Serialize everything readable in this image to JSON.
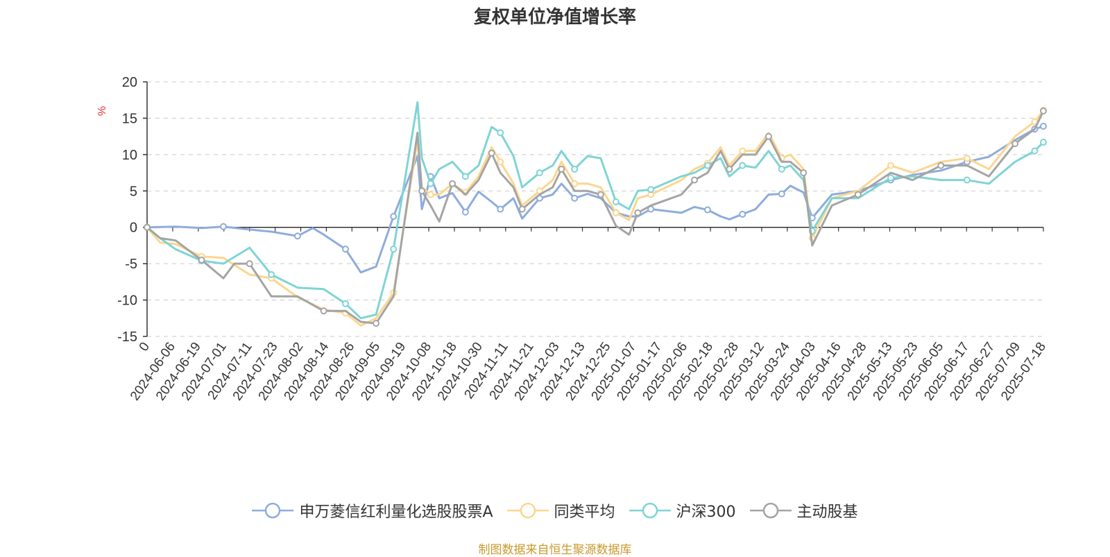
{
  "chart_data": {
    "type": "line",
    "title": "复权单位净值增长率",
    "ylabel": "%",
    "ylim": [
      -15,
      20
    ],
    "yticks": [
      20,
      15,
      10,
      5,
      0,
      -5,
      -10,
      -15
    ],
    "y_grid": true,
    "x_start": "2024-06-06",
    "x_end": "2025-07-22",
    "x_tick_labels": [
      "0",
      "2024-06-06",
      "2024-06-19",
      "2024-07-01",
      "2024-07-11",
      "2024-07-23",
      "2024-08-02",
      "2024-08-14",
      "2024-08-26",
      "2024-09-05",
      "2024-09-19",
      "2024-10-08",
      "2024-10-18",
      "2024-10-30",
      "2024-11-11",
      "2024-11-21",
      "2024-12-03",
      "2024-12-13",
      "2024-12-25",
      "2025-01-07",
      "2025-01-17",
      "2025-02-06",
      "2025-02-18",
      "2025-02-28",
      "2025-03-12",
      "2025-03-24",
      "2025-04-03",
      "2025-04-16",
      "2025-04-28",
      "2025-05-13",
      "2025-05-23",
      "2025-06-05",
      "2025-06-17",
      "2025-06-27",
      "2025-07-09",
      "2025-07-18"
    ],
    "legend_position": "bottom",
    "series": [
      {
        "name": "申万菱信红利量化选股股票A",
        "color": "#8eacdc",
        "points": [
          [
            "2024-06-06",
            0
          ],
          [
            "2024-06-19",
            0.1
          ],
          [
            "2024-07-01",
            -0.1
          ],
          [
            "2024-07-11",
            0.1
          ],
          [
            "2024-07-23",
            -0.3
          ],
          [
            "2024-08-02",
            -0.6
          ],
          [
            "2024-08-14",
            -1.2
          ],
          [
            "2024-08-21",
            -0.1
          ],
          [
            "2024-08-26",
            -1.0
          ],
          [
            "2024-09-05",
            -3.0
          ],
          [
            "2024-09-12",
            -6.2
          ],
          [
            "2024-09-19",
            -5.4
          ],
          [
            "2024-09-27",
            1.5
          ],
          [
            "2024-10-08",
            9.8
          ],
          [
            "2024-10-10",
            2.5
          ],
          [
            "2024-10-14",
            7.0
          ],
          [
            "2024-10-18",
            4.0
          ],
          [
            "2024-10-24",
            4.7
          ],
          [
            "2024-10-30",
            2.1
          ],
          [
            "2024-11-05",
            4.9
          ],
          [
            "2024-11-11",
            3.5
          ],
          [
            "2024-11-15",
            2.5
          ],
          [
            "2024-11-21",
            4.0
          ],
          [
            "2024-11-25",
            1.2
          ],
          [
            "2024-12-03",
            4.0
          ],
          [
            "2024-12-09",
            4.5
          ],
          [
            "2024-12-13",
            6.0
          ],
          [
            "2024-12-19",
            4.0
          ],
          [
            "2024-12-25",
            4.6
          ],
          [
            "2024-12-31",
            4.0
          ],
          [
            "2025-01-07",
            2.0
          ],
          [
            "2025-01-13",
            1.5
          ],
          [
            "2025-01-17",
            1.5
          ],
          [
            "2025-01-23",
            2.5
          ],
          [
            "2025-02-06",
            2.0
          ],
          [
            "2025-02-12",
            2.8
          ],
          [
            "2025-02-18",
            2.4
          ],
          [
            "2025-02-24",
            1.5
          ],
          [
            "2025-02-28",
            1.1
          ],
          [
            "2025-03-06",
            1.8
          ],
          [
            "2025-03-12",
            2.5
          ],
          [
            "2025-03-18",
            4.5
          ],
          [
            "2025-03-24",
            4.6
          ],
          [
            "2025-03-28",
            5.7
          ],
          [
            "2025-04-03",
            4.8
          ],
          [
            "2025-04-07",
            1.3
          ],
          [
            "2025-04-16",
            4.5
          ],
          [
            "2025-04-28",
            5.0
          ],
          [
            "2025-05-13",
            6.5
          ],
          [
            "2025-05-23",
            7.2
          ],
          [
            "2025-06-05",
            7.8
          ],
          [
            "2025-06-17",
            9.0
          ],
          [
            "2025-06-27",
            9.7
          ],
          [
            "2025-07-09",
            12.0
          ],
          [
            "2025-07-18",
            13.5
          ],
          [
            "2025-07-22",
            13.9
          ]
        ]
      },
      {
        "name": "同类平均",
        "color": "#fcd68e",
        "points": [
          [
            "2024-06-06",
            0
          ],
          [
            "2024-06-12",
            -2.1
          ],
          [
            "2024-06-19",
            -2.3
          ],
          [
            "2024-07-01",
            -4.0
          ],
          [
            "2024-07-11",
            -4.2
          ],
          [
            "2024-07-23",
            -6.5
          ],
          [
            "2024-08-02",
            -7.0
          ],
          [
            "2024-08-14",
            -9.6
          ],
          [
            "2024-08-26",
            -11.3
          ],
          [
            "2024-09-05",
            -11.8
          ],
          [
            "2024-09-12",
            -13.5
          ],
          [
            "2024-09-19",
            -12.5
          ],
          [
            "2024-09-27",
            -9.0
          ],
          [
            "2024-10-08",
            12.0
          ],
          [
            "2024-10-10",
            5.5
          ],
          [
            "2024-10-14",
            4.5
          ],
          [
            "2024-10-18",
            4.5
          ],
          [
            "2024-10-24",
            6.0
          ],
          [
            "2024-10-30",
            4.8
          ],
          [
            "2024-11-05",
            7.0
          ],
          [
            "2024-11-11",
            11.0
          ],
          [
            "2024-11-15",
            9.0
          ],
          [
            "2024-11-21",
            6.0
          ],
          [
            "2024-11-25",
            3.0
          ],
          [
            "2024-12-03",
            5.0
          ],
          [
            "2024-12-09",
            6.5
          ],
          [
            "2024-12-13",
            9.0
          ],
          [
            "2024-12-19",
            6.0
          ],
          [
            "2024-12-25",
            6.0
          ],
          [
            "2024-12-31",
            5.5
          ],
          [
            "2025-01-07",
            2.0
          ],
          [
            "2025-01-13",
            1.0
          ],
          [
            "2025-01-17",
            4.0
          ],
          [
            "2025-01-23",
            4.5
          ],
          [
            "2025-02-06",
            6.5
          ],
          [
            "2025-02-12",
            8.0
          ],
          [
            "2025-02-18",
            8.8
          ],
          [
            "2025-02-24",
            11.0
          ],
          [
            "2025-02-28",
            8.5
          ],
          [
            "2025-03-06",
            10.5
          ],
          [
            "2025-03-12",
            10.5
          ],
          [
            "2025-03-18",
            13.0
          ],
          [
            "2025-03-24",
            9.5
          ],
          [
            "2025-03-28",
            10.0
          ],
          [
            "2025-04-03",
            8.0
          ],
          [
            "2025-04-07",
            -1.5
          ],
          [
            "2025-04-16",
            4.0
          ],
          [
            "2025-04-28",
            5.0
          ],
          [
            "2025-05-13",
            8.5
          ],
          [
            "2025-05-23",
            7.5
          ],
          [
            "2025-06-05",
            9.0
          ],
          [
            "2025-06-17",
            9.5
          ],
          [
            "2025-06-27",
            8.0
          ],
          [
            "2025-07-09",
            12.5
          ],
          [
            "2025-07-18",
            14.5
          ],
          [
            "2025-07-22",
            16.1
          ]
        ]
      },
      {
        "name": "沪深300",
        "color": "#7fd4d4",
        "points": [
          [
            "2024-06-06",
            0
          ],
          [
            "2024-06-12",
            -1.5
          ],
          [
            "2024-06-19",
            -3.0
          ],
          [
            "2024-07-01",
            -4.6
          ],
          [
            "2024-07-11",
            -5.0
          ],
          [
            "2024-07-23",
            -2.8
          ],
          [
            "2024-08-02",
            -6.5
          ],
          [
            "2024-08-14",
            -8.3
          ],
          [
            "2024-08-26",
            -8.5
          ],
          [
            "2024-09-05",
            -10.5
          ],
          [
            "2024-09-12",
            -12.5
          ],
          [
            "2024-09-19",
            -12.0
          ],
          [
            "2024-09-27",
            -3.0
          ],
          [
            "2024-10-08",
            17.2
          ],
          [
            "2024-10-10",
            9.5
          ],
          [
            "2024-10-14",
            6.0
          ],
          [
            "2024-10-18",
            8.0
          ],
          [
            "2024-10-24",
            9.0
          ],
          [
            "2024-10-30",
            7.0
          ],
          [
            "2024-11-05",
            8.5
          ],
          [
            "2024-11-11",
            13.8
          ],
          [
            "2024-11-15",
            13.0
          ],
          [
            "2024-11-21",
            9.8
          ],
          [
            "2024-11-25",
            5.5
          ],
          [
            "2024-12-03",
            7.5
          ],
          [
            "2024-12-09",
            8.5
          ],
          [
            "2024-12-13",
            10.5
          ],
          [
            "2024-12-19",
            8.0
          ],
          [
            "2024-12-25",
            9.8
          ],
          [
            "2024-12-31",
            9.5
          ],
          [
            "2025-01-07",
            3.5
          ],
          [
            "2025-01-13",
            2.5
          ],
          [
            "2025-01-17",
            5.0
          ],
          [
            "2025-01-23",
            5.2
          ],
          [
            "2025-02-06",
            7.0
          ],
          [
            "2025-02-12",
            7.5
          ],
          [
            "2025-02-18",
            8.5
          ],
          [
            "2025-02-24",
            9.5
          ],
          [
            "2025-02-28",
            7.0
          ],
          [
            "2025-03-06",
            8.5
          ],
          [
            "2025-03-12",
            8.2
          ],
          [
            "2025-03-18",
            10.5
          ],
          [
            "2025-03-24",
            8.0
          ],
          [
            "2025-03-28",
            8.5
          ],
          [
            "2025-04-03",
            6.5
          ],
          [
            "2025-04-07",
            -0.5
          ],
          [
            "2025-04-16",
            4.0
          ],
          [
            "2025-04-28",
            4.0
          ],
          [
            "2025-05-13",
            6.8
          ],
          [
            "2025-05-23",
            7.0
          ],
          [
            "2025-06-05",
            6.5
          ],
          [
            "2025-06-17",
            6.5
          ],
          [
            "2025-06-27",
            6.0
          ],
          [
            "2025-07-09",
            9.0
          ],
          [
            "2025-07-18",
            10.5
          ],
          [
            "2025-07-22",
            11.7
          ]
        ]
      },
      {
        "name": "主动股基",
        "color": "#a4a4a4",
        "points": [
          [
            "2024-06-06",
            0
          ],
          [
            "2024-06-12",
            -1.5
          ],
          [
            "2024-06-19",
            -1.8
          ],
          [
            "2024-07-01",
            -4.5
          ],
          [
            "2024-07-11",
            -7.0
          ],
          [
            "2024-07-16",
            -5.0
          ],
          [
            "2024-07-23",
            -5.0
          ],
          [
            "2024-08-02",
            -9.5
          ],
          [
            "2024-08-14",
            -9.5
          ],
          [
            "2024-08-26",
            -11.5
          ],
          [
            "2024-09-05",
            -11.5
          ],
          [
            "2024-09-12",
            -13.0
          ],
          [
            "2024-09-19",
            -13.2
          ],
          [
            "2024-09-27",
            -9.5
          ],
          [
            "2024-10-08",
            13.0
          ],
          [
            "2024-10-10",
            5.0
          ],
          [
            "2024-10-14",
            3.0
          ],
          [
            "2024-10-18",
            0.8
          ],
          [
            "2024-10-24",
            6.0
          ],
          [
            "2024-10-30",
            4.5
          ],
          [
            "2024-11-05",
            6.5
          ],
          [
            "2024-11-11",
            10.2
          ],
          [
            "2024-11-15",
            7.5
          ],
          [
            "2024-11-21",
            5.5
          ],
          [
            "2024-11-25",
            2.5
          ],
          [
            "2024-12-03",
            4.5
          ],
          [
            "2024-12-09",
            5.5
          ],
          [
            "2024-12-13",
            8.0
          ],
          [
            "2024-12-19",
            5.0
          ],
          [
            "2024-12-25",
            5.0
          ],
          [
            "2024-12-31",
            4.5
          ],
          [
            "2025-01-07",
            0.2
          ],
          [
            "2025-01-13",
            -1.0
          ],
          [
            "2025-01-17",
            2.0
          ],
          [
            "2025-01-23",
            3.0
          ],
          [
            "2025-02-06",
            4.5
          ],
          [
            "2025-02-12",
            6.5
          ],
          [
            "2025-02-18",
            7.5
          ],
          [
            "2025-02-24",
            10.5
          ],
          [
            "2025-02-28",
            8.0
          ],
          [
            "2025-03-06",
            10.0
          ],
          [
            "2025-03-12",
            10.0
          ],
          [
            "2025-03-18",
            12.5
          ],
          [
            "2025-03-24",
            9.0
          ],
          [
            "2025-03-28",
            9.0
          ],
          [
            "2025-04-03",
            7.5
          ],
          [
            "2025-04-07",
            -2.5
          ],
          [
            "2025-04-16",
            3.0
          ],
          [
            "2025-04-28",
            4.5
          ],
          [
            "2025-05-13",
            7.5
          ],
          [
            "2025-05-23",
            6.5
          ],
          [
            "2025-06-05",
            8.5
          ],
          [
            "2025-06-17",
            8.5
          ],
          [
            "2025-06-27",
            7.0
          ],
          [
            "2025-07-09",
            11.5
          ],
          [
            "2025-07-18",
            13.5
          ],
          [
            "2025-07-22",
            16.0
          ]
        ]
      }
    ]
  },
  "source_note": "制图数据来自恒生聚源数据库"
}
